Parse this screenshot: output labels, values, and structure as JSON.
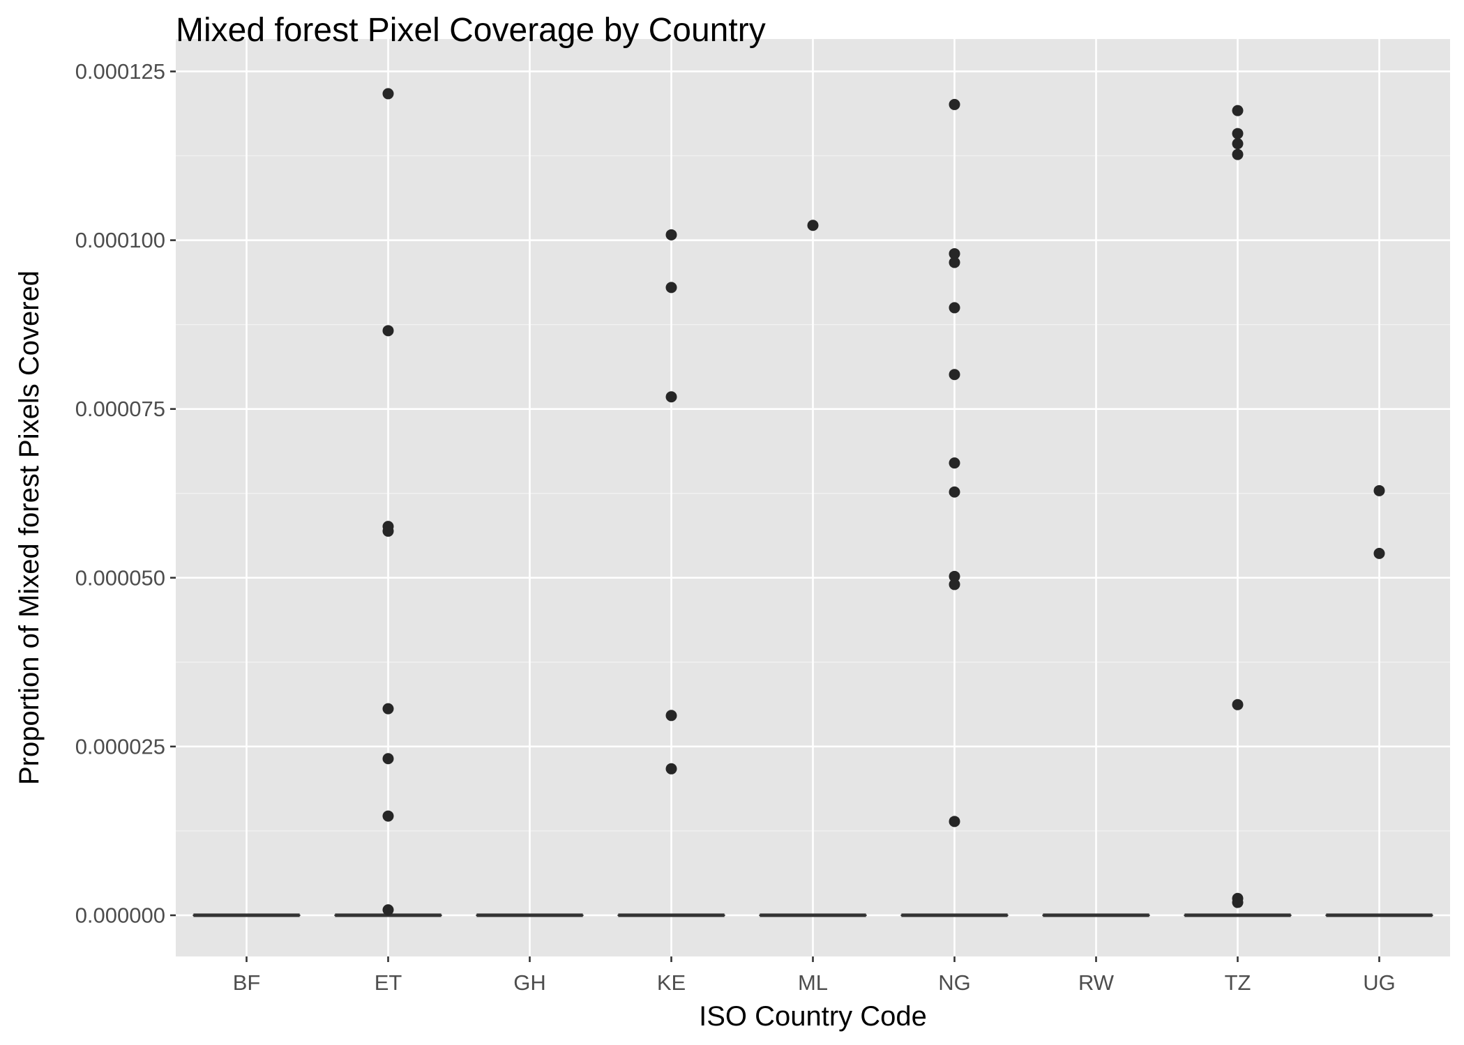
{
  "chart_data": {
    "type": "boxplot",
    "title": "Mixed forest Pixel Coverage by Country",
    "xlabel": "ISO Country Code",
    "ylabel": "Proportion of Mixed forest Pixels Covered",
    "categories": [
      "BF",
      "ET",
      "GH",
      "KE",
      "ML",
      "NG",
      "RW",
      "TZ",
      "UG"
    ],
    "ylim": [
      -6.1e-06,
      0.0001298
    ],
    "y_ticks": [
      0.0,
      2.5e-05,
      5e-05,
      7.5e-05,
      0.0001,
      0.000125
    ],
    "y_tick_labels": [
      "0.000000",
      "0.000025",
      "0.000050",
      "0.000075",
      "0.000100",
      "0.000125"
    ],
    "grid": true,
    "boxes": [
      {
        "category": "BF",
        "q1": 0,
        "median": 0,
        "q3": 0
      },
      {
        "category": "ET",
        "q1": 0,
        "median": 0,
        "q3": 0
      },
      {
        "category": "GH",
        "q1": 0,
        "median": 0,
        "q3": 0
      },
      {
        "category": "KE",
        "q1": 0,
        "median": 0,
        "q3": 0
      },
      {
        "category": "ML",
        "q1": 0,
        "median": 0,
        "q3": 0
      },
      {
        "category": "NG",
        "q1": 0,
        "median": 0,
        "q3": 0
      },
      {
        "category": "RW",
        "q1": 0,
        "median": 0,
        "q3": 0
      },
      {
        "category": "TZ",
        "q1": 0,
        "median": 0,
        "q3": 0
      },
      {
        "category": "UG",
        "q1": 0,
        "median": 0,
        "q3": 0
      }
    ],
    "outliers": [
      {
        "category": "ET",
        "values": [
          0.0001217,
          8.66e-05,
          5.76e-05,
          5.69e-05,
          3.06e-05,
          2.32e-05,
          1.47e-05,
          8e-07
        ]
      },
      {
        "category": "KE",
        "values": [
          0.0001008,
          9.3e-05,
          7.68e-05,
          2.96e-05,
          2.17e-05
        ]
      },
      {
        "category": "ML",
        "values": [
          0.0001022
        ]
      },
      {
        "category": "NG",
        "values": [
          0.0001201,
          9.8e-05,
          9.67e-05,
          9e-05,
          8.01e-05,
          6.7e-05,
          6.27e-05,
          5.02e-05,
          4.9e-05,
          1.39e-05
        ]
      },
      {
        "category": "TZ",
        "values": [
          0.0001192,
          0.0001158,
          0.0001143,
          0.0001127,
          3.12e-05,
          2.5e-06,
          1.9e-06
        ]
      },
      {
        "category": "UG",
        "values": [
          6.29e-05,
          5.36e-05
        ]
      }
    ],
    "colors": {
      "panel_background": "#e5e5e5",
      "grid_major": "#ffffff",
      "grid_minor": "#f2f2f2",
      "points": "#262626",
      "box_line": "#333333",
      "tick_text": "#4d4d4d"
    }
  }
}
